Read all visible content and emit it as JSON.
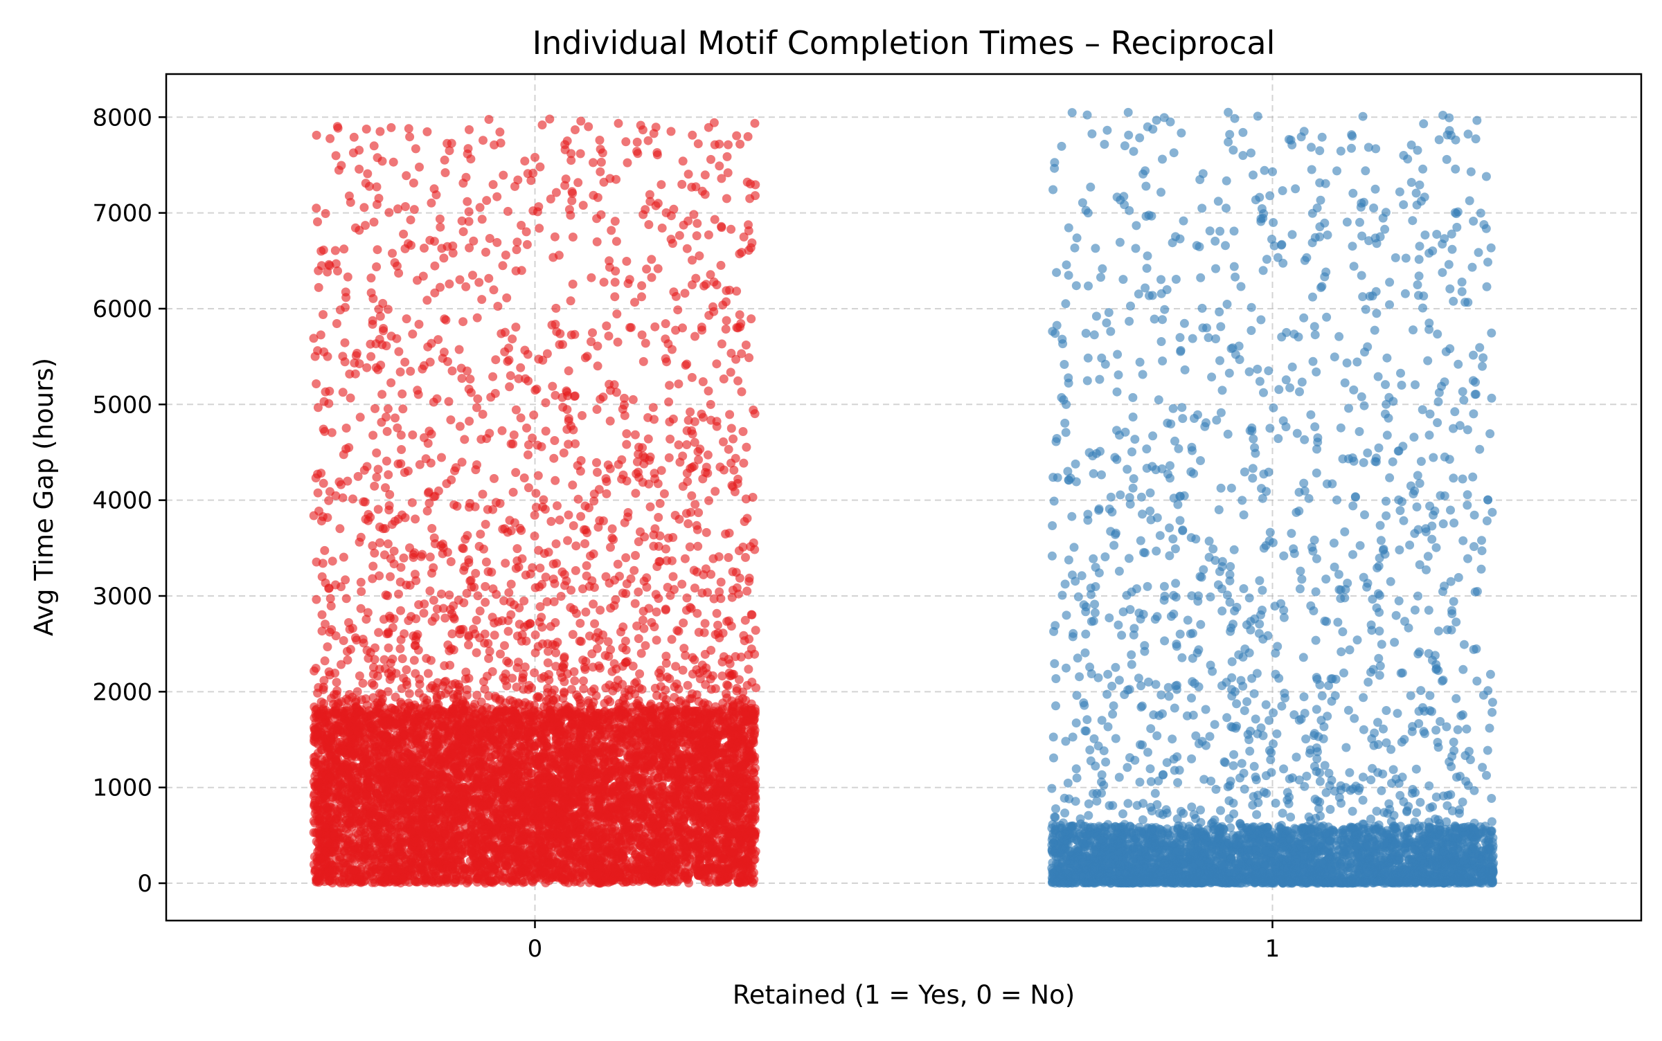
{
  "chart_data": {
    "type": "scatter",
    "title": "Individual Motif Completion Times – Reciprocal",
    "xlabel": "Retained (1 = Yes, 0 = No)",
    "ylabel": "Avg Time Gap (hours)",
    "categories": [
      "0",
      "1"
    ],
    "x_ticks": [
      "0",
      "1"
    ],
    "y_ticks": [
      "0",
      "1000",
      "2000",
      "3000",
      "4000",
      "5000",
      "6000",
      "7000",
      "8000"
    ],
    "xlim": [
      -0.5,
      1.5
    ],
    "ylim": [
      -390,
      8450
    ],
    "jitter_width": 0.3,
    "grid": true,
    "point_alpha": 0.6,
    "series": [
      {
        "category": "0",
        "color": "#e41a1c",
        "approx_count": 9000,
        "y_min": 0,
        "y_max": 7980,
        "dense_up_to": 1800,
        "highlighted_points": [
          {
            "x": -0.21,
            "y": 7850
          },
          {
            "x": 0.02,
            "y": 7980
          },
          {
            "x": 0.0,
            "y": 7580
          },
          {
            "x": 0.11,
            "y": 7350
          },
          {
            "x": 0.25,
            "y": 7490
          },
          {
            "x": -0.25,
            "y": 7110
          },
          {
            "x": -0.23,
            "y": 6870
          },
          {
            "x": -0.19,
            "y": 6480
          },
          {
            "x": 0.22,
            "y": 6890
          },
          {
            "x": 0.26,
            "y": 7150
          },
          {
            "x": 0.29,
            "y": 6610
          },
          {
            "x": -0.29,
            "y": 6600
          },
          {
            "x": -0.3,
            "y": 5690
          },
          {
            "x": 0.28,
            "y": 5530
          }
        ]
      },
      {
        "category": "1",
        "color": "#377eb8",
        "approx_count": 4500,
        "y_min": 0,
        "y_max": 8050,
        "dense_up_to": 600,
        "highlighted_points": [
          {
            "x": 0.94,
            "y": 8050
          },
          {
            "x": 0.98,
            "y": 8010
          },
          {
            "x": 0.96,
            "y": 7840
          },
          {
            "x": 0.94,
            "y": 7740
          },
          {
            "x": 0.96,
            "y": 7600
          },
          {
            "x": 1.0,
            "y": 7430
          },
          {
            "x": 1.14,
            "y": 7670
          },
          {
            "x": 1.24,
            "y": 7860
          },
          {
            "x": 1.29,
            "y": 7380
          },
          {
            "x": 0.75,
            "y": 7000
          },
          {
            "x": 0.76,
            "y": 6630
          },
          {
            "x": 1.12,
            "y": 7060
          },
          {
            "x": 1.19,
            "y": 6920
          },
          {
            "x": 1.25,
            "y": 6850
          }
        ]
      }
    ]
  }
}
